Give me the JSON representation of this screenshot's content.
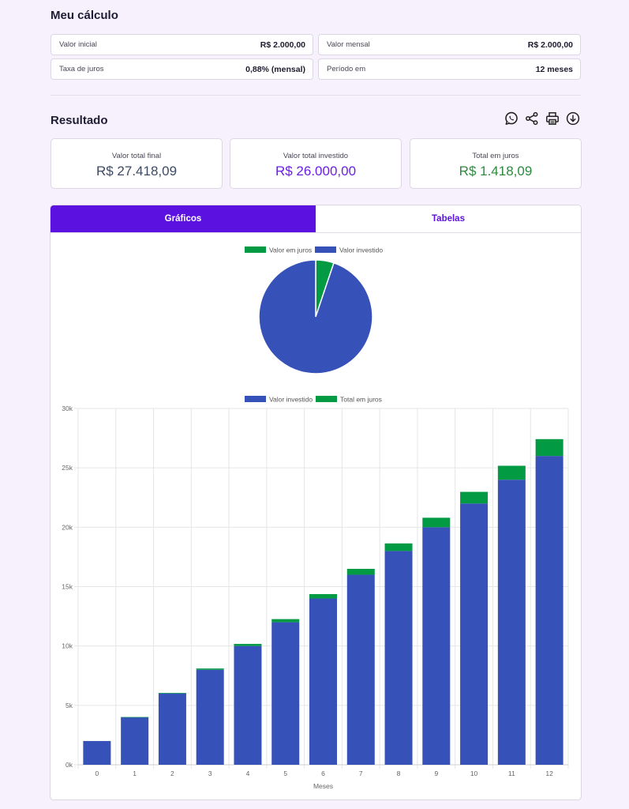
{
  "calc": {
    "title": "Meu cálculo",
    "fields": [
      {
        "label": "Valor inicial",
        "value": "R$ 2.000,00"
      },
      {
        "label": "Valor mensal",
        "value": "R$ 2.000,00"
      },
      {
        "label": "Taxa de juros",
        "value": "0,88% (mensal)"
      },
      {
        "label": "Período em",
        "value": "12 meses"
      }
    ]
  },
  "result": {
    "title": "Resultado",
    "actions": [
      "whatsapp-icon",
      "share-icon",
      "print-icon",
      "download-icon"
    ],
    "cards": [
      {
        "label": "Valor total final",
        "value": "R$ 27.418,09",
        "color": "#3d4a63"
      },
      {
        "label": "Valor total investido",
        "value": "R$ 26.000,00",
        "color": "#6a1ee6"
      },
      {
        "label": "Total em juros",
        "value": "R$ 1.418,09",
        "color": "#2d8a3e"
      }
    ]
  },
  "tabs": [
    {
      "label": "Gráficos",
      "active": true
    },
    {
      "label": "Tabelas",
      "active": false
    }
  ],
  "colors": {
    "investido": "#3651b8",
    "juros": "#039a44",
    "accent": "#5b12e0"
  },
  "chart_data": [
    {
      "type": "pie",
      "legend": [
        "Valor em juros",
        "Valor investido"
      ],
      "values": [
        1418.09,
        26000
      ]
    },
    {
      "type": "bar",
      "stacked": true,
      "legend": [
        "Valor investido",
        "Total em juros"
      ],
      "categories": [
        "0",
        "1",
        "2",
        "3",
        "4",
        "5",
        "6",
        "7",
        "8",
        "9",
        "10",
        "11",
        "12"
      ],
      "series": [
        {
          "name": "Valor investido",
          "values": [
            2000,
            4000,
            6000,
            8000,
            10000,
            12000,
            14000,
            16000,
            18000,
            20000,
            22000,
            24000,
            26000
          ]
        },
        {
          "name": "Total em juros",
          "values": [
            0,
            18,
            53,
            106,
            176,
            264,
            370,
            495,
            637,
            798,
            977,
            1175,
            1418
          ]
        }
      ],
      "xlabel": "Meses",
      "ylim": [
        0,
        30000
      ],
      "ytick_labels": [
        "0k",
        "5k",
        "10k",
        "15k",
        "20k",
        "25k",
        "30k"
      ]
    }
  ]
}
